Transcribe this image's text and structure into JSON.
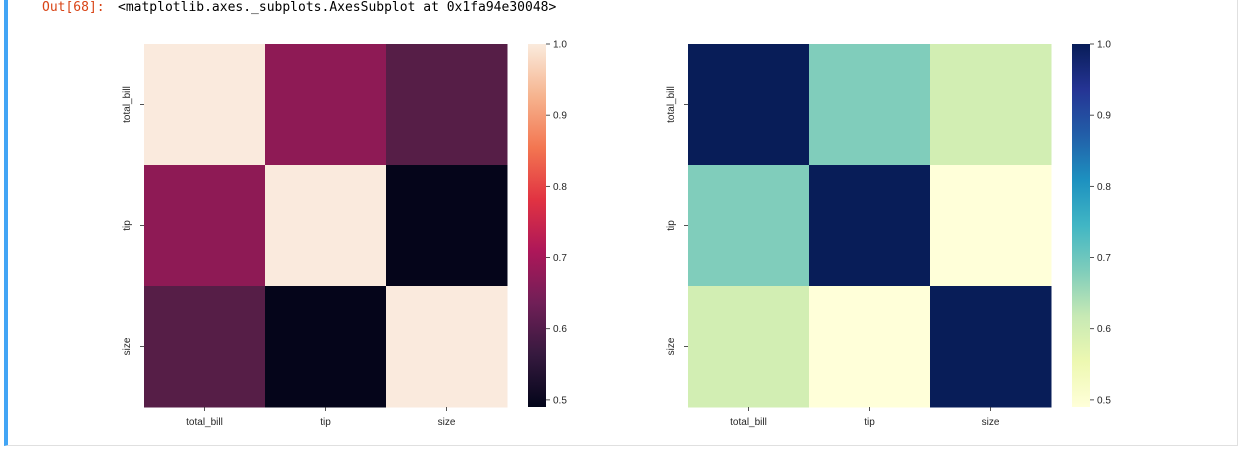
{
  "output": {
    "prompt": "Out[68]:",
    "repr": "<matplotlib.axes._subplots.AxesSubplot at 0x1fa94e30048>"
  },
  "chart_data": [
    {
      "type": "heatmap",
      "title": "",
      "colormap": "rocket",
      "x_categories": [
        "total_bill",
        "tip",
        "size"
      ],
      "y_categories": [
        "total_bill",
        "tip",
        "size"
      ],
      "values": [
        [
          1.0,
          0.68,
          0.6
        ],
        [
          0.68,
          1.0,
          0.49
        ],
        [
          0.6,
          0.49,
          1.0
        ]
      ],
      "colorbar": {
        "min": 0.49,
        "max": 1.0,
        "ticks": [
          "1.0",
          "0.9",
          "0.8",
          "0.7",
          "0.6",
          "0.5"
        ]
      },
      "cell_colors": [
        [
          "#faeadd",
          "#8e1a55",
          "#561e47"
        ],
        [
          "#8e1a55",
          "#faeadd",
          "#05051a"
        ],
        [
          "#561e47",
          "#05051a",
          "#faeadd"
        ]
      ]
    },
    {
      "type": "heatmap",
      "title": "",
      "colormap": "YlGnBu",
      "x_categories": [
        "total_bill",
        "tip",
        "size"
      ],
      "y_categories": [
        "total_bill",
        "tip",
        "size"
      ],
      "values": [
        [
          1.0,
          0.68,
          0.6
        ],
        [
          0.68,
          1.0,
          0.49
        ],
        [
          0.6,
          0.49,
          1.0
        ]
      ],
      "colorbar": {
        "min": 0.49,
        "max": 1.0,
        "ticks": [
          "1.0",
          "0.9",
          "0.8",
          "0.7",
          "0.6",
          "0.5"
        ]
      },
      "cell_colors": [
        [
          "#081d58",
          "#80cdbb",
          "#d2eeb3"
        ],
        [
          "#80cdbb",
          "#081d58",
          "#ffffd9"
        ],
        [
          "#d2eeb3",
          "#ffffd9",
          "#081d58"
        ]
      ]
    }
  ]
}
